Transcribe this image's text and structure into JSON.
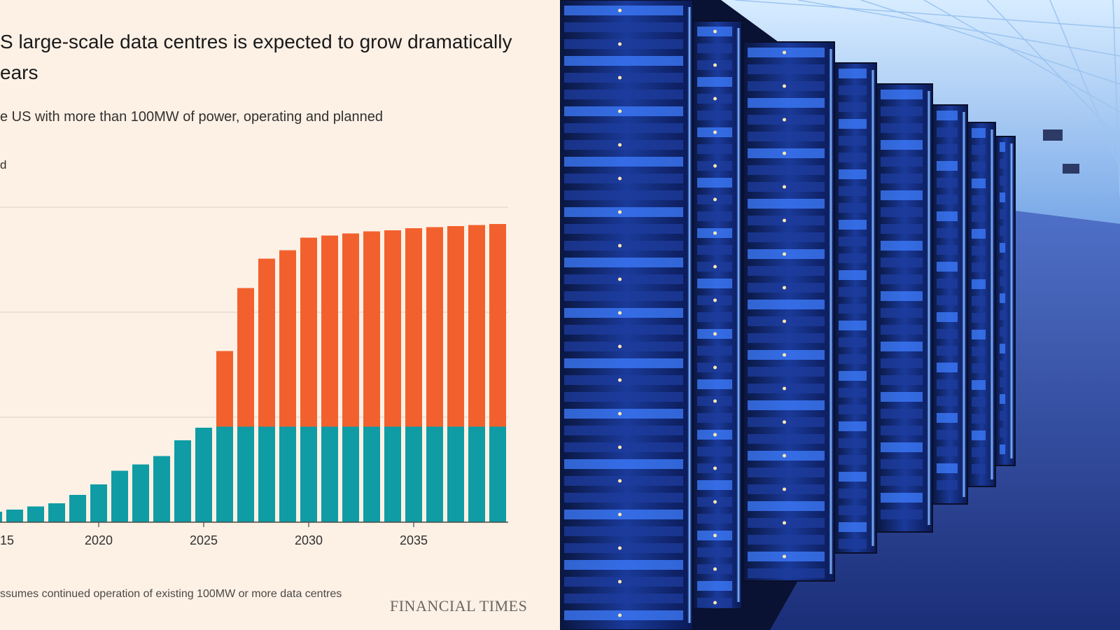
{
  "chart_data": {
    "type": "bar",
    "stacked": true,
    "title": "S large-scale data centres is expected to grow dramatically\nears",
    "subtitle": "e US with more than 100MW of power, operating and planned",
    "legend_text": "d",
    "footnote": "ssumes continued operation of existing 100MW or more data centres",
    "categories": [
      2015,
      2016,
      2017,
      2018,
      2019,
      2020,
      2021,
      2022,
      2023,
      2024,
      2025,
      2026,
      2027,
      2028,
      2029,
      2030,
      2031,
      2032,
      2033,
      2034,
      2035,
      2036,
      2037,
      2038,
      2039
    ],
    "x_tick_labels": [
      "15",
      "2020",
      "2025",
      "2030",
      "2035"
    ],
    "grid": true,
    "colors": {
      "operating": "#0f9ca5",
      "planned": "#f2612d",
      "gridline": "#d8cec4",
      "axis": "#4d4845"
    },
    "series": [
      {
        "values": [
          1.0,
          1.2,
          1.5,
          1.8,
          2.6,
          3.6,
          4.9,
          5.5,
          6.3,
          7.8,
          9.0,
          9.1,
          9.1,
          9.1,
          9.1,
          9.1,
          9.1,
          9.1,
          9.1,
          9.1,
          9.1,
          9.1,
          9.1,
          9.1,
          9.1
        ]
      },
      {
        "values": [
          0,
          0,
          0,
          0,
          0,
          0,
          0,
          0,
          0,
          0,
          0,
          7.2,
          13.2,
          16.0,
          16.8,
          18.0,
          18.2,
          18.4,
          18.6,
          18.7,
          18.9,
          19.0,
          19.1,
          19.2,
          19.3
        ]
      }
    ],
    "ylim": [
      0,
      30
    ]
  },
  "brand": "FINANCIAL TIMES",
  "image": {
    "subject": "server-racks-photo",
    "accent": "#2a6bff"
  }
}
